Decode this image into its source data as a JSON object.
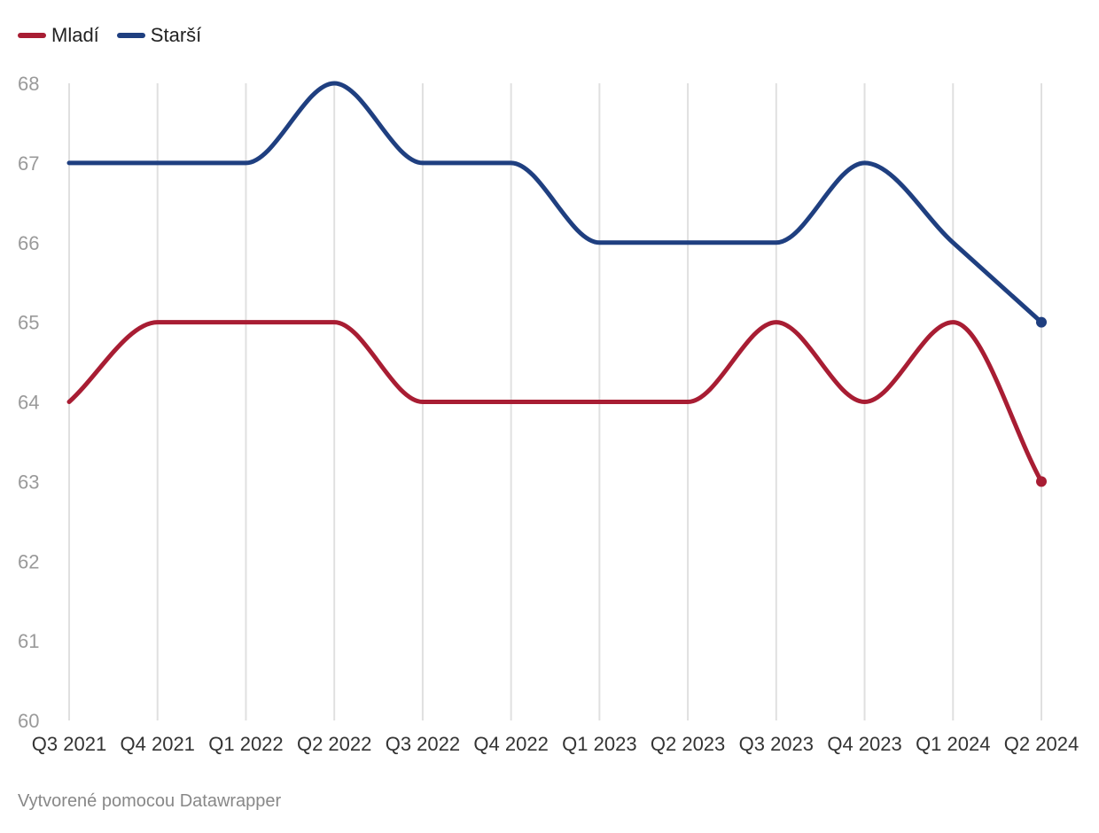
{
  "chart_data": {
    "type": "line",
    "title": "",
    "xlabel": "",
    "ylabel": "",
    "categories": [
      "Q3 2021",
      "Q4 2021",
      "Q1 2022",
      "Q2 2022",
      "Q3 2022",
      "Q4 2022",
      "Q1 2023",
      "Q2 2023",
      "Q3 2023",
      "Q4 2023",
      "Q1 2024",
      "Q2 2024"
    ],
    "series": [
      {
        "name": "Mladí",
        "color": "#a81d33",
        "values": [
          64,
          65,
          65,
          65,
          64,
          64,
          64,
          64,
          65,
          64,
          65,
          63
        ]
      },
      {
        "name": "Starší",
        "color": "#1f3f80",
        "values": [
          67,
          67,
          67,
          68,
          67,
          67,
          66,
          66,
          66,
          67,
          66,
          65
        ]
      }
    ],
    "ylim": [
      60,
      68
    ],
    "yticks": [
      60,
      61,
      62,
      63,
      64,
      65,
      66,
      67,
      68
    ],
    "grid": "vertical",
    "legend": "top-left"
  },
  "footer": {
    "credit": "Vytvorené pomocou Datawrapper"
  }
}
